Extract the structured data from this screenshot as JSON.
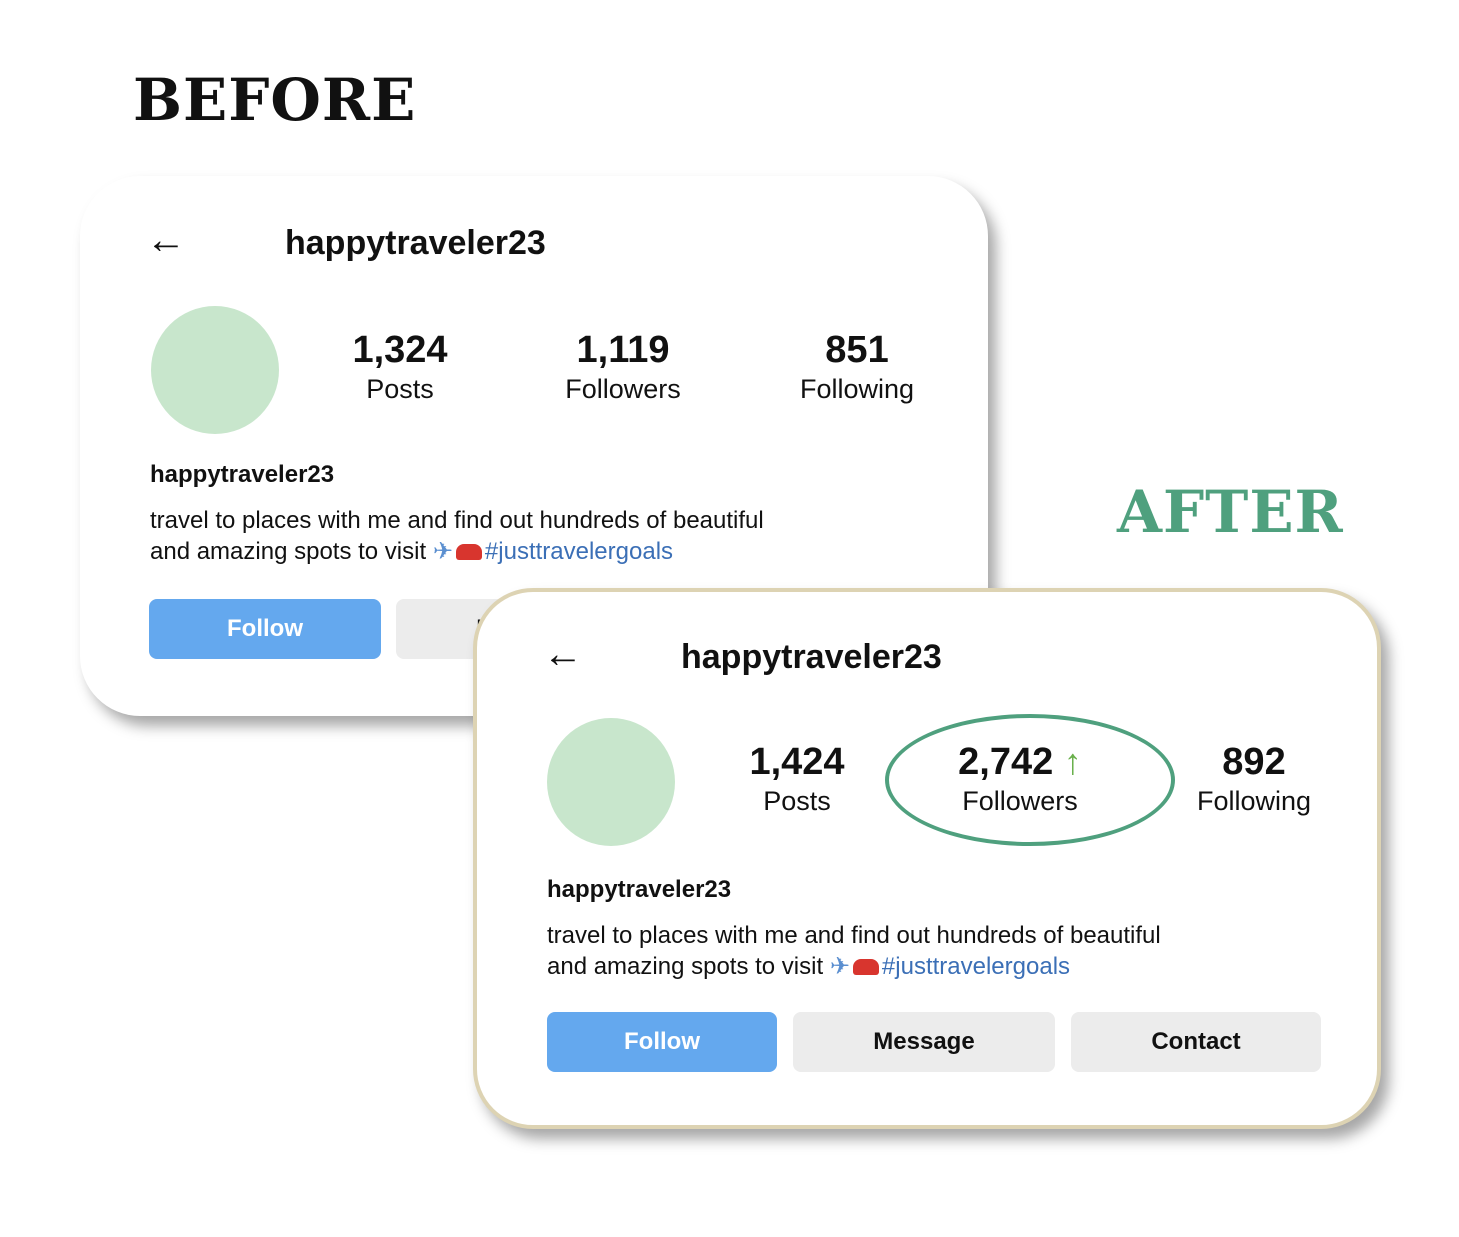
{
  "labels": {
    "before": "BEFORE",
    "after": "AFTER",
    "after_color": "#4fa07e"
  },
  "before": {
    "back_icon": "arrow-left-icon",
    "username": "happytraveler23",
    "stats": [
      {
        "value": "1,324",
        "label": "Posts"
      },
      {
        "value": "1,119",
        "label": "Followers"
      },
      {
        "value": "851",
        "label": "Following"
      }
    ],
    "bio_name": "happytraveler23",
    "bio_line1": "travel to places with me and find out hundreds of beautiful",
    "bio_line2": "and amazing spots to visit",
    "plane": "✈",
    "hashtag": "#justtravelergoals",
    "buttons": {
      "follow": "Follow",
      "message": "Message"
    }
  },
  "after": {
    "back_icon": "arrow-left-icon",
    "username": "happytraveler23",
    "stats": [
      {
        "value": "1,424",
        "label": "Posts"
      },
      {
        "value": "2,742",
        "label": "Followers"
      },
      {
        "value": "892",
        "label": "Following"
      }
    ],
    "up_arrow": "↑",
    "bio_name": "happytraveler23",
    "bio_line1": "travel to places with me and find out hundreds of beautiful",
    "bio_line2": "and amazing spots to visit",
    "plane": "✈",
    "hashtag": "#justtravelergoals",
    "buttons": {
      "follow": "Follow",
      "message": "Message",
      "contact": "Contact"
    }
  }
}
